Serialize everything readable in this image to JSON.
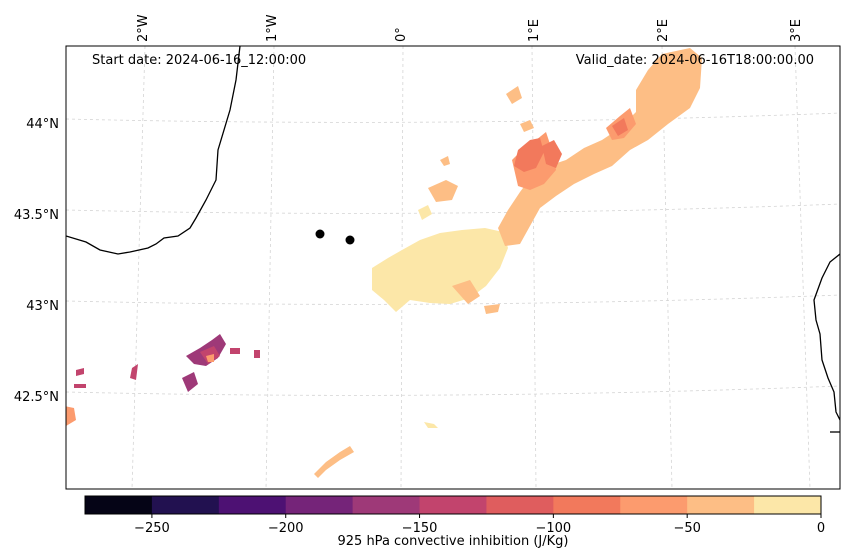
{
  "map": {
    "start_label": "Start date: 2024-06-16_12:00:00",
    "valid_label": "Valid_date: 2024-06-16T18:00:00.00",
    "lon_labels": [
      "2°W",
      "1°W",
      "0°",
      "1°E",
      "2°E",
      "3°E"
    ],
    "lat_labels": [
      "44°N",
      "43.5°N",
      "43°N",
      "42.5°N"
    ],
    "markers": [
      "station-1",
      "station-2"
    ],
    "colors": {
      "coast": "#000000",
      "grid": "#cfcfcf",
      "cin_0_25": "#fce7a8",
      "cin_25_50": "#fdbe85",
      "cin_50_75": "#fc9b6e",
      "cin_75_100": "#f2795c",
      "cin_100_125": "#df5d5e",
      "cin_125_150": "#c2446d",
      "cin_150_175": "#9e3978",
      "cin_175_200": "#7d2a7c"
    }
  },
  "colorbar": {
    "label": "925 hPa convective inhibition (J/Kg)",
    "tick_labels": [
      "−250",
      "−200",
      "−150",
      "−100",
      "−50",
      "0"
    ],
    "colors": [
      "#050416",
      "#221150",
      "#4d1173",
      "#752479",
      "#9e3978",
      "#c2446d",
      "#df5d5e",
      "#f2795c",
      "#fc9b6e",
      "#fdbe85",
      "#fce7a8"
    ]
  }
}
